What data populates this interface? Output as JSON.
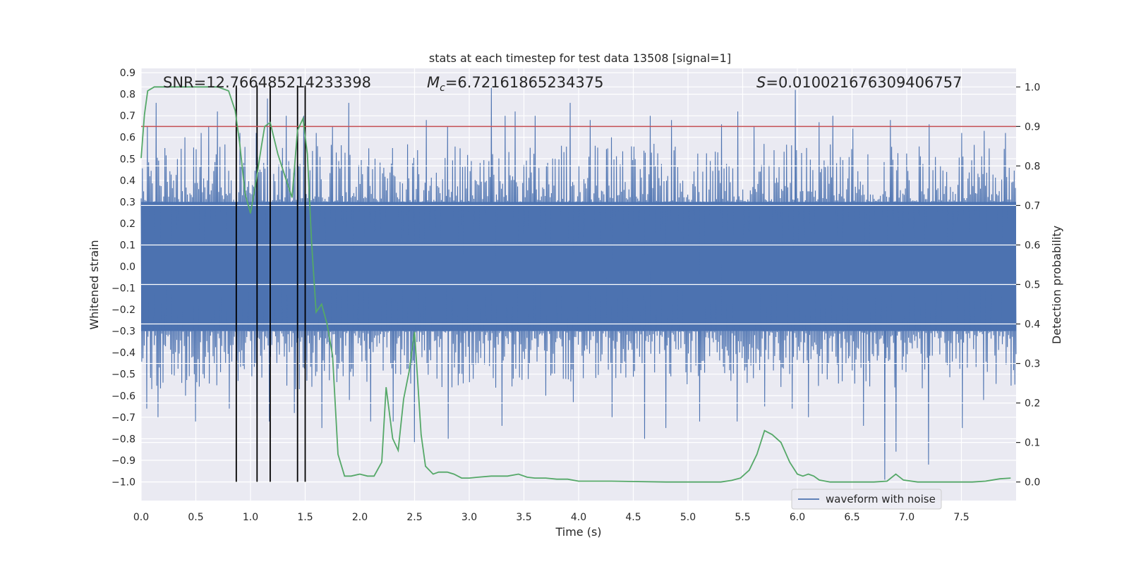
{
  "chart_data": {
    "type": "line",
    "title": "stats at each timestep for test data 13508 [signal=1]",
    "xlabel": "Time (s)",
    "ylabel_left": "Whitened strain",
    "ylabel_right": "Detection probability",
    "xlim": [
      0.0,
      8.0
    ],
    "ylim_left": [
      -1.087,
      0.92
    ],
    "ylim_right": [
      -0.047,
      1.047
    ],
    "x_ticks": [
      "0.0",
      "0.5",
      "1.0",
      "1.5",
      "2.0",
      "2.5",
      "3.0",
      "3.5",
      "4.0",
      "4.5",
      "5.0",
      "5.5",
      "6.0",
      "6.5",
      "7.0",
      "7.5"
    ],
    "y_ticks_left": [
      "0.9",
      "0.8",
      "0.7",
      "0.6",
      "0.5",
      "0.4",
      "0.3",
      "0.2",
      "0.1",
      "0.0",
      "-0.1",
      "-0.2",
      "-0.3",
      "-0.4",
      "-0.5",
      "-0.6",
      "-0.7",
      "-0.8",
      "-0.9",
      "-1.0"
    ],
    "y_ticks_right": [
      "1.0",
      "0.9",
      "0.8",
      "0.7",
      "0.6",
      "0.5",
      "0.4",
      "0.3",
      "0.2",
      "0.1",
      "0.0"
    ],
    "grid": true,
    "annotations": {
      "snr": "SNR=12.766485214233398",
      "mc_symbol": "M",
      "mc_sub": "c",
      "mc_value": "=6.72161865234375",
      "s_symbol": "S",
      "s_value": "=0.010021676309406757"
    },
    "legend": {
      "position": "lower-right",
      "entries": [
        "waveform with noise"
      ]
    },
    "colors": {
      "waveform": "#4c72b0",
      "probability": "#55a868",
      "threshold": "#c44e52",
      "markers": "#000000",
      "background": "#eaeaf2",
      "grid": "#ffffff"
    },
    "threshold": {
      "axis": "right",
      "value": 0.9
    },
    "marker_times": [
      0.87,
      1.06,
      1.18,
      1.43,
      1.5
    ],
    "marker_range_left": [
      -1.0,
      0.84
    ],
    "waveform": {
      "name": "waveform with noise",
      "duration": 8.0,
      "samples": 1400,
      "core_band": [
        -0.3,
        0.3
      ],
      "peak_up": [
        [
          0.05,
          0.65
        ],
        [
          0.13,
          0.76
        ],
        [
          0.22,
          0.55
        ],
        [
          0.4,
          0.6
        ],
        [
          0.55,
          0.62
        ],
        [
          0.62,
          0.65
        ],
        [
          0.7,
          0.72
        ],
        [
          0.9,
          0.62
        ],
        [
          1.05,
          0.62
        ],
        [
          1.15,
          0.78
        ],
        [
          1.32,
          0.7
        ],
        [
          1.48,
          0.7
        ],
        [
          1.6,
          0.62
        ],
        [
          1.75,
          0.65
        ],
        [
          1.9,
          0.76
        ],
        [
          2.3,
          0.55
        ],
        [
          2.6,
          0.68
        ],
        [
          2.8,
          0.65
        ],
        [
          3.2,
          0.83
        ],
        [
          3.33,
          0.7
        ],
        [
          3.42,
          0.72
        ],
        [
          3.6,
          0.7
        ],
        [
          3.92,
          0.76
        ],
        [
          4.1,
          0.68
        ],
        [
          4.3,
          0.6
        ],
        [
          4.65,
          0.7
        ],
        [
          4.85,
          0.68
        ],
        [
          5.3,
          0.66
        ],
        [
          5.45,
          0.72
        ],
        [
          5.6,
          0.65
        ],
        [
          5.98,
          0.82
        ],
        [
          6.2,
          0.67
        ],
        [
          6.32,
          0.7
        ],
        [
          6.5,
          0.64
        ],
        [
          6.85,
          0.68
        ],
        [
          7.2,
          0.66
        ],
        [
          7.5,
          0.62
        ],
        [
          7.7,
          0.63
        ],
        [
          7.9,
          0.62
        ]
      ],
      "peak_down": [
        [
          0.05,
          -0.66
        ],
        [
          0.15,
          -0.7
        ],
        [
          0.4,
          -0.6
        ],
        [
          0.5,
          -0.72
        ],
        [
          0.8,
          -0.66
        ],
        [
          1.05,
          -0.68
        ],
        [
          1.17,
          -0.72
        ],
        [
          1.4,
          -0.68
        ],
        [
          1.65,
          -0.75
        ],
        [
          1.9,
          -0.62
        ],
        [
          2.1,
          -0.72
        ],
        [
          2.3,
          -0.72
        ],
        [
          2.5,
          -0.82
        ],
        [
          2.8,
          -0.8
        ],
        [
          3.3,
          -0.74
        ],
        [
          3.7,
          -0.6
        ],
        [
          3.95,
          -0.63
        ],
        [
          4.3,
          -0.7
        ],
        [
          4.6,
          -0.8
        ],
        [
          4.8,
          -0.75
        ],
        [
          5.1,
          -0.72
        ],
        [
          5.45,
          -0.72
        ],
        [
          5.7,
          -0.65
        ],
        [
          5.95,
          -0.66
        ],
        [
          6.1,
          -0.7
        ],
        [
          6.6,
          -0.74
        ],
        [
          6.8,
          -0.99
        ],
        [
          6.9,
          -0.86
        ],
        [
          7.2,
          -0.92
        ],
        [
          7.5,
          -0.75
        ],
        [
          7.7,
          -0.62
        ]
      ]
    },
    "probability": {
      "name": "detection probability",
      "x": [
        0.0,
        0.03,
        0.06,
        0.12,
        0.2,
        0.3,
        0.4,
        0.5,
        0.6,
        0.7,
        0.8,
        0.86,
        0.9,
        0.95,
        1.0,
        1.05,
        1.1,
        1.13,
        1.18,
        1.25,
        1.32,
        1.38,
        1.43,
        1.48,
        1.52,
        1.56,
        1.6,
        1.65,
        1.7,
        1.75,
        1.8,
        1.86,
        1.92,
        2.0,
        2.07,
        2.13,
        2.2,
        2.24,
        2.3,
        2.35,
        2.4,
        2.45,
        2.5,
        2.56,
        2.6,
        2.67,
        2.72,
        2.8,
        2.86,
        2.93,
        3.0,
        3.08,
        3.2,
        3.35,
        3.45,
        3.53,
        3.6,
        3.7,
        3.8,
        3.9,
        4.0,
        4.3,
        4.8,
        5.3,
        5.4,
        5.48,
        5.56,
        5.63,
        5.7,
        5.77,
        5.85,
        5.93,
        6.0,
        6.05,
        6.1,
        6.15,
        6.2,
        6.3,
        6.5,
        6.7,
        6.82,
        6.9,
        6.97,
        7.1,
        7.3,
        7.6,
        7.72,
        7.85,
        7.95
      ],
      "values": [
        0.82,
        0.93,
        0.99,
        1.0,
        1.0,
        1.0,
        1.0,
        1.0,
        1.0,
        1.0,
        0.99,
        0.94,
        0.86,
        0.73,
        0.68,
        0.76,
        0.85,
        0.9,
        0.91,
        0.83,
        0.77,
        0.72,
        0.89,
        0.92,
        0.83,
        0.6,
        0.43,
        0.45,
        0.4,
        0.32,
        0.07,
        0.015,
        0.015,
        0.02,
        0.015,
        0.015,
        0.05,
        0.24,
        0.11,
        0.08,
        0.21,
        0.28,
        0.38,
        0.12,
        0.04,
        0.02,
        0.025,
        0.025,
        0.02,
        0.01,
        0.01,
        0.012,
        0.015,
        0.015,
        0.02,
        0.012,
        0.01,
        0.01,
        0.007,
        0.007,
        0.002,
        0.002,
        0.0,
        0.0,
        0.004,
        0.01,
        0.03,
        0.07,
        0.13,
        0.12,
        0.1,
        0.05,
        0.02,
        0.015,
        0.02,
        0.015,
        0.005,
        0.0,
        0.0,
        0.0,
        0.002,
        0.02,
        0.005,
        0.0,
        0.0,
        0.0,
        0.002,
        0.008,
        0.01
      ]
    }
  }
}
